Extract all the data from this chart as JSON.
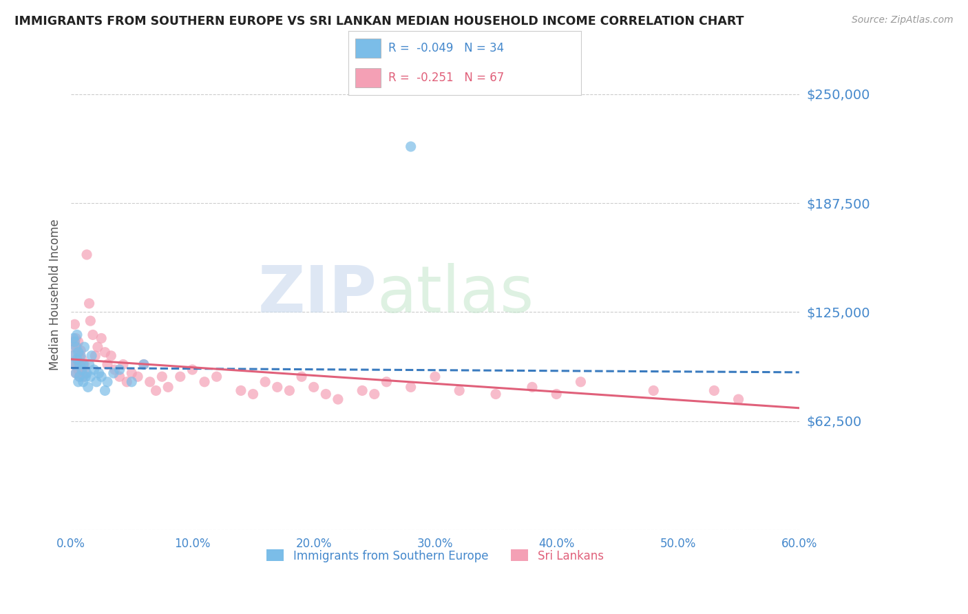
{
  "title": "IMMIGRANTS FROM SOUTHERN EUROPE VS SRI LANKAN MEDIAN HOUSEHOLD INCOME CORRELATION CHART",
  "source": "Source: ZipAtlas.com",
  "ylabel": "Median Household Income",
  "xlim": [
    0.0,
    0.6
  ],
  "ylim": [
    0,
    270000
  ],
  "yticks": [
    0,
    62500,
    125000,
    187500,
    250000
  ],
  "ytick_labels": [
    "",
    "$62,500",
    "$125,000",
    "$187,500",
    "$250,000"
  ],
  "xticks": [
    0.0,
    0.1,
    0.2,
    0.3,
    0.4,
    0.5,
    0.6
  ],
  "xtick_labels": [
    "0.0%",
    "10.0%",
    "20.0%",
    "30.0%",
    "40.0%",
    "50.0%",
    "60.0%"
  ],
  "blue_color": "#7bbde8",
  "pink_color": "#f4a0b5",
  "blue_line_color": "#3a7bbf",
  "pink_line_color": "#e0607a",
  "R_blue": -0.049,
  "N_blue": 34,
  "R_pink": -0.251,
  "N_pink": 67,
  "legend_label_blue": "Immigrants from Southern Europe",
  "legend_label_pink": "Sri Lankans",
  "watermark_zip": "ZIP",
  "watermark_atlas": "atlas",
  "background_color": "#ffffff",
  "grid_color": "#cccccc",
  "title_color": "#222222",
  "ytick_color": "#4488cc",
  "blue_scatter_x": [
    0.001,
    0.002,
    0.003,
    0.003,
    0.004,
    0.004,
    0.005,
    0.005,
    0.006,
    0.006,
    0.007,
    0.007,
    0.008,
    0.009,
    0.01,
    0.01,
    0.011,
    0.012,
    0.013,
    0.014,
    0.015,
    0.016,
    0.017,
    0.019,
    0.021,
    0.023,
    0.025,
    0.028,
    0.03,
    0.035,
    0.04,
    0.05,
    0.06,
    0.28
  ],
  "blue_scatter_y": [
    100000,
    110000,
    95000,
    108000,
    90000,
    105000,
    98000,
    112000,
    85000,
    102000,
    95000,
    88000,
    100000,
    92000,
    85000,
    95000,
    105000,
    88000,
    90000,
    82000,
    95000,
    88000,
    100000,
    92000,
    85000,
    90000,
    88000,
    80000,
    85000,
    90000,
    92000,
    85000,
    95000,
    220000
  ],
  "pink_scatter_x": [
    0.001,
    0.002,
    0.002,
    0.003,
    0.003,
    0.004,
    0.004,
    0.005,
    0.005,
    0.006,
    0.006,
    0.007,
    0.007,
    0.008,
    0.008,
    0.009,
    0.009,
    0.01,
    0.011,
    0.012,
    0.013,
    0.015,
    0.016,
    0.018,
    0.02,
    0.022,
    0.025,
    0.028,
    0.03,
    0.033,
    0.036,
    0.04,
    0.043,
    0.046,
    0.05,
    0.055,
    0.06,
    0.065,
    0.07,
    0.075,
    0.08,
    0.09,
    0.1,
    0.11,
    0.12,
    0.14,
    0.15,
    0.16,
    0.17,
    0.18,
    0.19,
    0.2,
    0.21,
    0.22,
    0.24,
    0.25,
    0.26,
    0.28,
    0.3,
    0.32,
    0.35,
    0.38,
    0.4,
    0.42,
    0.48,
    0.53,
    0.55
  ],
  "pink_scatter_y": [
    105000,
    108000,
    95000,
    100000,
    118000,
    90000,
    110000,
    95000,
    105000,
    92000,
    108000,
    88000,
    100000,
    95000,
    103000,
    90000,
    98000,
    88000,
    95000,
    90000,
    158000,
    130000,
    120000,
    112000,
    100000,
    105000,
    110000,
    102000,
    95000,
    100000,
    92000,
    88000,
    95000,
    85000,
    90000,
    88000,
    95000,
    85000,
    80000,
    88000,
    82000,
    88000,
    92000,
    85000,
    88000,
    80000,
    78000,
    85000,
    82000,
    80000,
    88000,
    82000,
    78000,
    75000,
    80000,
    78000,
    85000,
    82000,
    88000,
    80000,
    78000,
    82000,
    78000,
    85000,
    80000,
    80000,
    75000
  ]
}
